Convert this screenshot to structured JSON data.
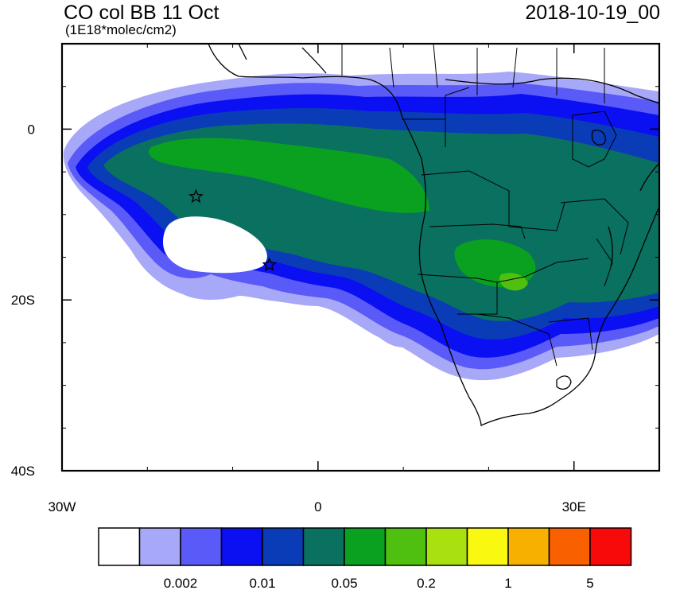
{
  "header": {
    "title": "CO col BB 11 Oct",
    "units": "(1E18*molec/cm2)",
    "datetime": "2018-10-19_00"
  },
  "map": {
    "lon_range": [
      -30,
      40
    ],
    "lat_range": [
      -40,
      10
    ],
    "x_ticks": [
      {
        "value": -30,
        "label": "30W"
      },
      {
        "value": 0,
        "label": "0"
      },
      {
        "value": 30,
        "label": "30E"
      }
    ],
    "y_ticks": [
      {
        "value": 0,
        "label": "0"
      },
      {
        "value": -20,
        "label": "20S"
      },
      {
        "value": -40,
        "label": "40S"
      }
    ],
    "markers": [
      {
        "name": "star-marker",
        "lon": -14.3,
        "lat": -7.9
      },
      {
        "name": "star-marker",
        "lon": -5.7,
        "lat": -15.9
      }
    ]
  },
  "colorbar": {
    "colors": [
      "#ffffff",
      "#a8a8f8",
      "#5a5af8",
      "#0a10f2",
      "#0a3cb8",
      "#0a7060",
      "#0aa020",
      "#50c010",
      "#a8e010",
      "#f8f810",
      "#f8b000",
      "#f86000",
      "#f80a0a"
    ],
    "labels": [
      {
        "after_box": 2,
        "text": "0.002"
      },
      {
        "after_box": 4,
        "text": "0.01"
      },
      {
        "after_box": 6,
        "text": "0.05"
      },
      {
        "after_box": 8,
        "text": "0.2"
      },
      {
        "after_box": 10,
        "text": "1"
      },
      {
        "after_box": 12,
        "text": "5"
      }
    ]
  }
}
